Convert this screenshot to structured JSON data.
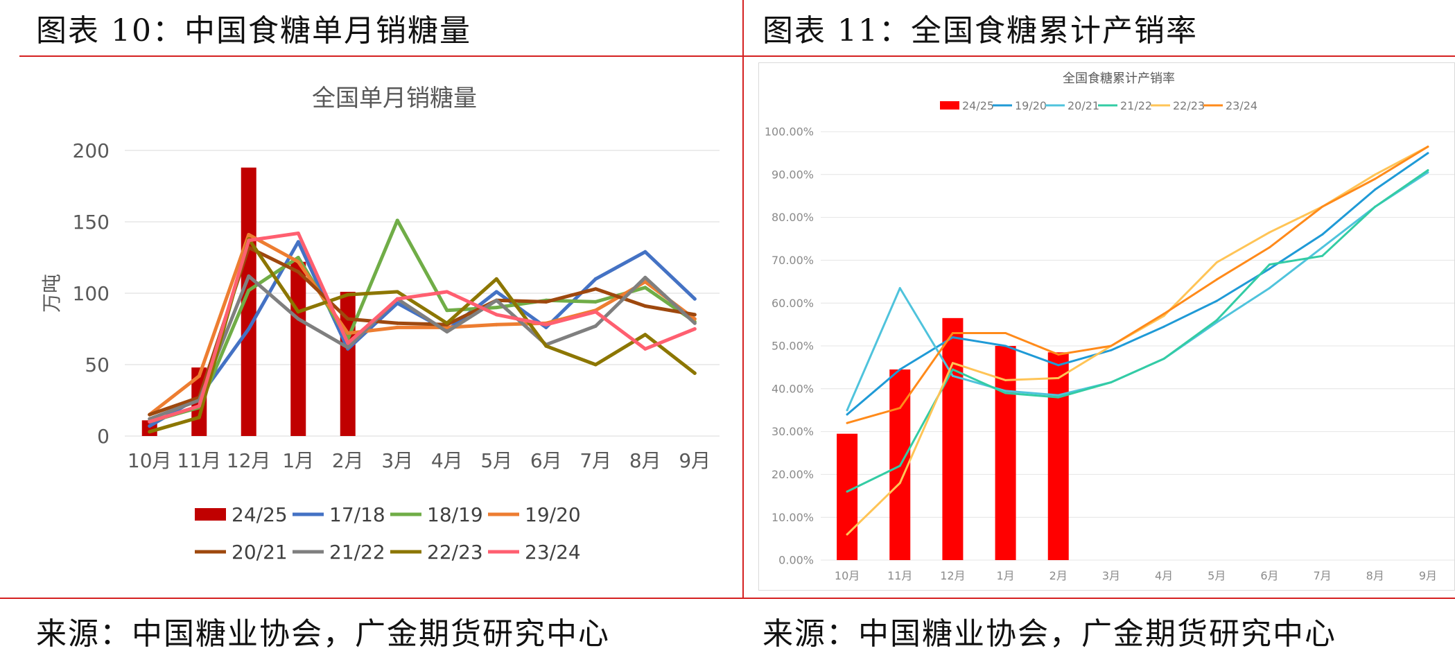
{
  "left_panel": {
    "figure_title": "图表 10：中国食糖单月销糖量",
    "source": "来源：中国糖业协会，广金期货研究中心"
  },
  "right_panel": {
    "figure_title": "图表 11：全国食糖累计产销率",
    "source": "来源：中国糖业协会，广金期货研究中心"
  },
  "chart_data": [
    {
      "type": "line",
      "title": "全国单月销糖量",
      "ylabel": "万吨",
      "xlabel": "",
      "ylim": [
        0,
        200
      ],
      "yticks": [
        0,
        50,
        100,
        150,
        200
      ],
      "grid": true,
      "legend_position": "bottom",
      "categories": [
        "10月",
        "11月",
        "12月",
        "1月",
        "2月",
        "3月",
        "4月",
        "5月",
        "6月",
        "7月",
        "8月",
        "9月"
      ],
      "bar_series": {
        "name": "24/25",
        "color": "#c00000",
        "values": [
          11,
          48,
          188,
          122,
          101,
          null,
          null,
          null,
          null,
          null,
          null,
          null
        ]
      },
      "series": [
        {
          "name": "17/18",
          "color": "#4472c4",
          "values": [
            7,
            27,
            75,
            136,
            61,
            93,
            74,
            101,
            76,
            110,
            129,
            96
          ]
        },
        {
          "name": "18/19",
          "color": "#70ad47",
          "values": [
            10,
            20,
            102,
            125,
            68,
            151,
            88,
            90,
            95,
            94,
            104,
            80
          ]
        },
        {
          "name": "19/20",
          "color": "#ed7d31",
          "values": [
            15,
            42,
            141,
            122,
            72,
            76,
            76,
            78,
            79,
            88,
            108,
            82
          ]
        },
        {
          "name": "20/21",
          "color": "#9e480e",
          "values": [
            15,
            27,
            132,
            115,
            82,
            79,
            78,
            95,
            94,
            103,
            91,
            85
          ]
        },
        {
          "name": "21/22",
          "color": "#7f7f7f",
          "values": [
            12,
            25,
            112,
            82,
            62,
            96,
            73,
            95,
            64,
            77,
            111,
            79
          ]
        },
        {
          "name": "22/23",
          "color": "#8c7600",
          "values": [
            3,
            13,
            138,
            87,
            99,
            101,
            79,
            110,
            63,
            50,
            71,
            44
          ]
        },
        {
          "name": "23/24",
          "color": "#ff5f70",
          "values": [
            10,
            21,
            137,
            142,
            65,
            96,
            101,
            85,
            78,
            87,
            61,
            75
          ]
        }
      ]
    },
    {
      "type": "line",
      "title": "全国食糖累计产销率",
      "xlabel": "",
      "ylabel": "",
      "ylim": [
        0,
        100
      ],
      "yticks": [
        "0.00%",
        "10.00%",
        "20.00%",
        "30.00%",
        "40.00%",
        "50.00%",
        "60.00%",
        "70.00%",
        "80.00%",
        "90.00%",
        "100.00%"
      ],
      "grid": true,
      "legend_position": "top",
      "categories": [
        "10月",
        "11月",
        "12月",
        "1月",
        "2月",
        "3月",
        "4月",
        "5月",
        "6月",
        "7月",
        "8月",
        "9月"
      ],
      "bar_series": {
        "name": "24/25",
        "color": "#ff0000",
        "values": [
          29.5,
          44.5,
          56.5,
          50,
          48.5,
          null,
          null,
          null,
          null,
          null,
          null,
          null
        ]
      },
      "series": [
        {
          "name": "19/20",
          "color": "#1f9ad6",
          "values": [
            34,
            44.5,
            52,
            50,
            45.5,
            49,
            54.5,
            60.5,
            68,
            76,
            86.5,
            95
          ]
        },
        {
          "name": "20/21",
          "color": "#4fc3dc",
          "values": [
            35,
            63.5,
            43,
            39.5,
            38.5,
            41.5,
            47,
            55.5,
            63.5,
            73,
            82.5,
            90.5
          ]
        },
        {
          "name": "21/22",
          "color": "#33cca4",
          "values": [
            16,
            22,
            44.5,
            39,
            38,
            41.5,
            47,
            56,
            69,
            71,
            82.5,
            91
          ]
        },
        {
          "name": "22/23",
          "color": "#ffc456",
          "values": [
            6,
            18,
            46,
            42,
            42.5,
            50,
            57,
            69.5,
            76.5,
            82.5,
            90,
            96.5
          ]
        },
        {
          "name": "23/24",
          "color": "#ff8a1a",
          "values": [
            32,
            35.5,
            53,
            53,
            48,
            50,
            57.5,
            65.5,
            73,
            82.5,
            89,
            96.5
          ]
        }
      ]
    }
  ]
}
